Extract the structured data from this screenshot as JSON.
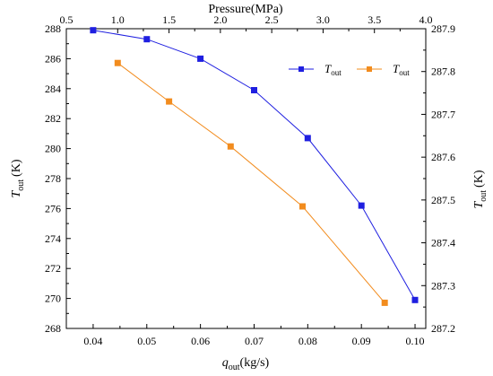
{
  "chart_data": {
    "type": "line",
    "xlabel": "q",
    "xlabel_sub": "out",
    "xlabel_unit": "(kg/s)",
    "x2label": "Pressure(MPa)",
    "ylabel": "T",
    "ylabel_sub": "out",
    "ylabel_unit": "(K)",
    "y2label": "T",
    "y2label_sub": "out",
    "y2label_unit": "(K)",
    "xlim": [
      0.035,
      0.102
    ],
    "x2lim": [
      0.5,
      4.0
    ],
    "ylim": [
      268,
      288
    ],
    "y2lim": [
      287.2,
      287.9
    ],
    "x_ticks": [
      "0.04",
      "0.05",
      "0.06",
      "0.07",
      "0.08",
      "0.09",
      "0.10"
    ],
    "x2_ticks": [
      "0.5",
      "1.0",
      "1.5",
      "2.0",
      "2.5",
      "3.0",
      "3.5",
      "4.0"
    ],
    "y_ticks": [
      "268",
      "270",
      "272",
      "274",
      "276",
      "278",
      "280",
      "282",
      "284",
      "286",
      "288"
    ],
    "y2_ticks": [
      "287.2",
      "287.3",
      "287.4",
      "287.5",
      "287.6",
      "287.7",
      "287.8",
      "287.9"
    ],
    "legend_position": "top-right",
    "series": [
      {
        "name": "T",
        "name_sub": "out",
        "color": "#1f1fe0",
        "axes": "bottom-left",
        "x": [
          0.04,
          0.05,
          0.06,
          0.07,
          0.08,
          0.09,
          0.1
        ],
        "values": [
          287.9,
          287.3,
          286.0,
          283.9,
          280.7,
          276.2,
          269.9
        ]
      },
      {
        "name": "T",
        "name_sub": "out",
        "color": "#f28c1e",
        "axes": "top-right",
        "x": [
          1.0,
          1.5,
          2.1,
          2.8,
          3.6
        ],
        "values": [
          287.82,
          287.73,
          287.625,
          287.485,
          287.26
        ]
      }
    ]
  }
}
